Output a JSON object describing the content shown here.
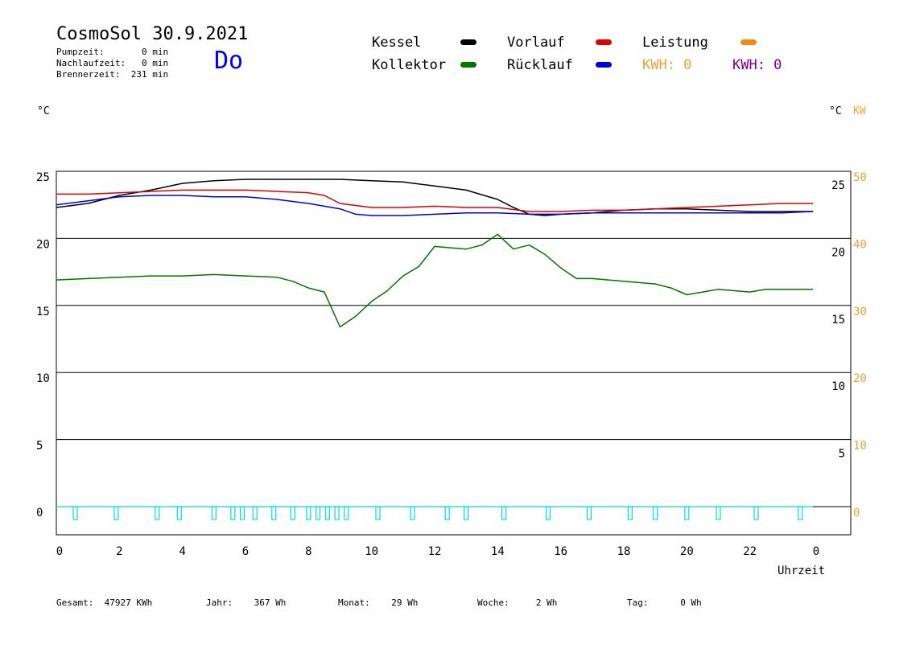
{
  "header": {
    "title": "CosmoSol 30.9.2021",
    "weekday": "Do",
    "pumpzeit": "Pumpzeit:       0 min",
    "nachlaufzeit": "Nachlaufzeit:   0 min",
    "brennerzeit": "Brennerzeit:  231 min"
  },
  "legend": {
    "kessel": "Kessel",
    "kollektor": "Kollektor",
    "vorlauf": "Vorlauf",
    "ruecklauf": "Rücklauf",
    "leistung": "Leistung",
    "kwh1": "KWH: 0",
    "kwh2": "KWH: 0",
    "colors": {
      "kessel": "#000000",
      "kollektor": "#007700",
      "vorlauf": "#dd0000",
      "ruecklauf": "#0000dd",
      "leistung": "#f08a18",
      "kwh1": "#e8a33a",
      "kwh2": "#800080"
    }
  },
  "units": {
    "left": "°C",
    "right": "°C",
    "right_kw": "KW"
  },
  "axis": {
    "xlabel": "Uhrzeit"
  },
  "footer": {
    "gesamt": "Gesamt:  47927 KWh",
    "jahr": "Jahr:    367 Wh",
    "monat": "Monat:    29 Wh",
    "woche": "Woche:     2 Wh",
    "tag": "Tag:      0 Wh"
  },
  "chart_data": {
    "type": "line",
    "x_ticks": [
      "0",
      "2",
      "4",
      "6",
      "8",
      "10",
      "12",
      "14",
      "16",
      "18",
      "20",
      "22",
      "0"
    ],
    "xlim": [
      0,
      24
    ],
    "y_ticks_left": [
      "25",
      "20",
      "15",
      "10",
      "5",
      "0"
    ],
    "y_ticks_right_temp": [
      "25",
      "20",
      "15",
      "10",
      "5"
    ],
    "y_ticks_right_kw": [
      "50",
      "40",
      "30",
      "20",
      "10",
      "0"
    ],
    "ylim_left": [
      -2,
      25.5
    ],
    "grid": true,
    "series": [
      {
        "name": "Kessel",
        "color": "#000000",
        "x": [
          0,
          1,
          2,
          3,
          4,
          5,
          6,
          7,
          8,
          9,
          10,
          11,
          12,
          13,
          14,
          14.5,
          15,
          15.5,
          16,
          17,
          18,
          19,
          20,
          21,
          22,
          23,
          24
        ],
        "y": [
          22.3,
          22.6,
          23.2,
          23.6,
          24.1,
          24.3,
          24.4,
          24.4,
          24.4,
          24.4,
          24.3,
          24.2,
          23.9,
          23.6,
          22.9,
          22.3,
          21.8,
          21.7,
          21.8,
          21.9,
          22.1,
          22.2,
          22.2,
          22.1,
          22.0,
          22.0,
          22.0
        ]
      },
      {
        "name": "Vorlauf",
        "color": "#dd0000",
        "x": [
          0,
          1,
          2,
          3,
          4,
          5,
          6,
          7,
          8,
          8.5,
          9,
          10,
          11,
          12,
          13,
          14,
          15,
          16,
          17,
          18,
          19,
          20,
          21,
          22,
          23,
          24
        ],
        "y": [
          23.3,
          23.3,
          23.4,
          23.5,
          23.6,
          23.6,
          23.6,
          23.5,
          23.4,
          23.2,
          22.6,
          22.3,
          22.3,
          22.4,
          22.3,
          22.3,
          22.0,
          22.0,
          22.1,
          22.1,
          22.2,
          22.3,
          22.4,
          22.5,
          22.6,
          22.6
        ]
      },
      {
        "name": "Rücklauf",
        "color": "#0000dd",
        "x": [
          0,
          1,
          2,
          3,
          4,
          5,
          6,
          7,
          8,
          9,
          9.5,
          10,
          11,
          12,
          13,
          14,
          15,
          16,
          17,
          18,
          19,
          20,
          21,
          22,
          23,
          24
        ],
        "y": [
          22.5,
          22.8,
          23.1,
          23.2,
          23.2,
          23.1,
          23.1,
          22.9,
          22.6,
          22.2,
          21.8,
          21.7,
          21.7,
          21.8,
          21.9,
          21.9,
          21.8,
          21.8,
          21.9,
          21.9,
          21.9,
          21.9,
          21.9,
          21.9,
          21.9,
          22.0
        ]
      },
      {
        "name": "Kollektor",
        "color": "#007700",
        "x": [
          0,
          1,
          2,
          3,
          4,
          5,
          6,
          7,
          7.5,
          8,
          8.5,
          9,
          9.5,
          10,
          10.5,
          11,
          11.5,
          12,
          12.5,
          13,
          13.5,
          14,
          14.5,
          15,
          15.5,
          16,
          16.5,
          17,
          18,
          19,
          19.5,
          20,
          20.5,
          21,
          21.5,
          22,
          22.5,
          23,
          24
        ],
        "y": [
          16.9,
          17.0,
          17.1,
          17.2,
          17.2,
          17.3,
          17.2,
          17.1,
          16.8,
          16.3,
          16.0,
          13.4,
          14.2,
          15.3,
          16.1,
          17.2,
          17.9,
          19.4,
          19.3,
          19.2,
          19.5,
          20.3,
          19.2,
          19.5,
          18.8,
          17.8,
          17.0,
          17.0,
          16.8,
          16.6,
          16.3,
          15.8,
          16.0,
          16.2,
          16.1,
          16.0,
          16.2,
          16.2,
          16.2
        ]
      }
    ],
    "pump_markers": {
      "color": "#00dddd",
      "x": [
        0.6,
        1.9,
        3.2,
        3.9,
        5.0,
        5.6,
        5.9,
        6.3,
        6.9,
        7.5,
        8.0,
        8.3,
        8.6,
        8.9,
        9.2,
        10.2,
        11.3,
        12.4,
        13.0,
        14.2,
        15.6,
        16.9,
        18.2,
        19.0,
        20.0,
        21.0,
        22.2,
        23.6
      ]
    }
  }
}
